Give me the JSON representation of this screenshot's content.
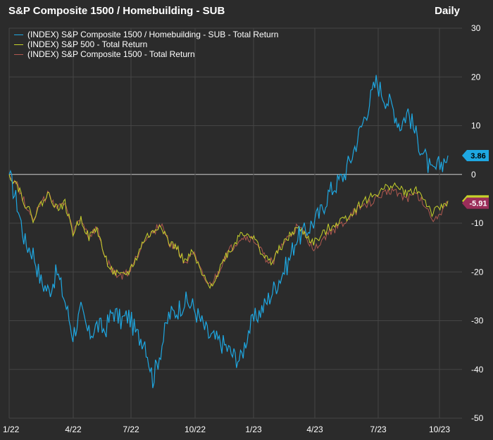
{
  "header": {
    "title": "S&P Composite 1500 / Homebuilding - SUB",
    "frequency": "Daily"
  },
  "legend": [
    {
      "label": "(INDEX) S&P Composite 1500 / Homebuilding - SUB - Total Return",
      "color": "#1ea7e1"
    },
    {
      "label": "(INDEX) S&P 500 - Total Return",
      "color": "#c6d22a"
    },
    {
      "label": "(INDEX) S&P Composite 1500 - Total Return",
      "color": "#b0584f"
    }
  ],
  "chart_data": {
    "type": "line",
    "x_ticks": [
      "1/22",
      "4/22",
      "7/22",
      "10/22",
      "1/23",
      "4/23",
      "7/23",
      "10/23"
    ],
    "y_ticks": [
      30,
      20,
      10,
      0,
      -10,
      -20,
      -30,
      -40,
      -50
    ],
    "ylim": [
      -50,
      30
    ],
    "grid": true,
    "legend_position": "top-left",
    "series": [
      {
        "name": "(INDEX) S&P Composite 1500 / Homebuilding - SUB - Total Return",
        "color": "#1ea7e1",
        "end_label": "3.86",
        "values": [
          0,
          -6,
          -14,
          -16,
          -22,
          -24,
          -20,
          -26,
          -33,
          -28,
          -33,
          -31,
          -32,
          -28,
          -30,
          -29,
          -33,
          -34,
          -42,
          -36,
          -29,
          -28,
          -26,
          -27,
          -30,
          -33,
          -34,
          -35,
          -37,
          -38,
          -32,
          -29,
          -27,
          -24,
          -21,
          -18,
          -13,
          -12,
          -10,
          -8,
          -4,
          -2,
          0,
          4,
          9,
          14,
          19,
          16,
          14,
          10,
          13,
          8,
          4,
          0,
          2,
          3.86
        ]
      },
      {
        "name": "(INDEX) S&P 500 - Total Return",
        "color": "#c6d22a",
        "end_label": "-5.44",
        "values": [
          0,
          -2,
          -6,
          -9,
          -6,
          -4,
          -7,
          -6,
          -12,
          -9,
          -13,
          -11,
          -17,
          -20,
          -21,
          -20,
          -17,
          -13,
          -12,
          -10,
          -14,
          -15,
          -18,
          -16,
          -20,
          -23,
          -21,
          -17,
          -15,
          -12,
          -12,
          -14,
          -17,
          -18,
          -15,
          -13,
          -11,
          -12,
          -14,
          -13,
          -11,
          -10,
          -9,
          -8,
          -6,
          -5,
          -4,
          -3,
          -2,
          -3,
          -4,
          -3,
          -5,
          -8,
          -7,
          -5.44
        ]
      },
      {
        "name": "(INDEX) S&P Composite 1500 - Total Return",
        "color": "#b0584f",
        "end_label": "-5.91",
        "values": [
          0,
          -2,
          -6,
          -9,
          -6,
          -4,
          -7,
          -6,
          -12,
          -9,
          -13,
          -11,
          -17,
          -20,
          -21,
          -20,
          -17,
          -13,
          -12,
          -10,
          -14,
          -15,
          -18,
          -16,
          -20,
          -23,
          -21,
          -17,
          -15,
          -13,
          -13,
          -14,
          -17,
          -18,
          -15,
          -13,
          -11,
          -12,
          -15,
          -14,
          -12,
          -11,
          -10,
          -8,
          -7,
          -6,
          -5,
          -4,
          -3,
          -4,
          -5,
          -4,
          -6,
          -9,
          -8,
          -5.91
        ]
      }
    ]
  }
}
